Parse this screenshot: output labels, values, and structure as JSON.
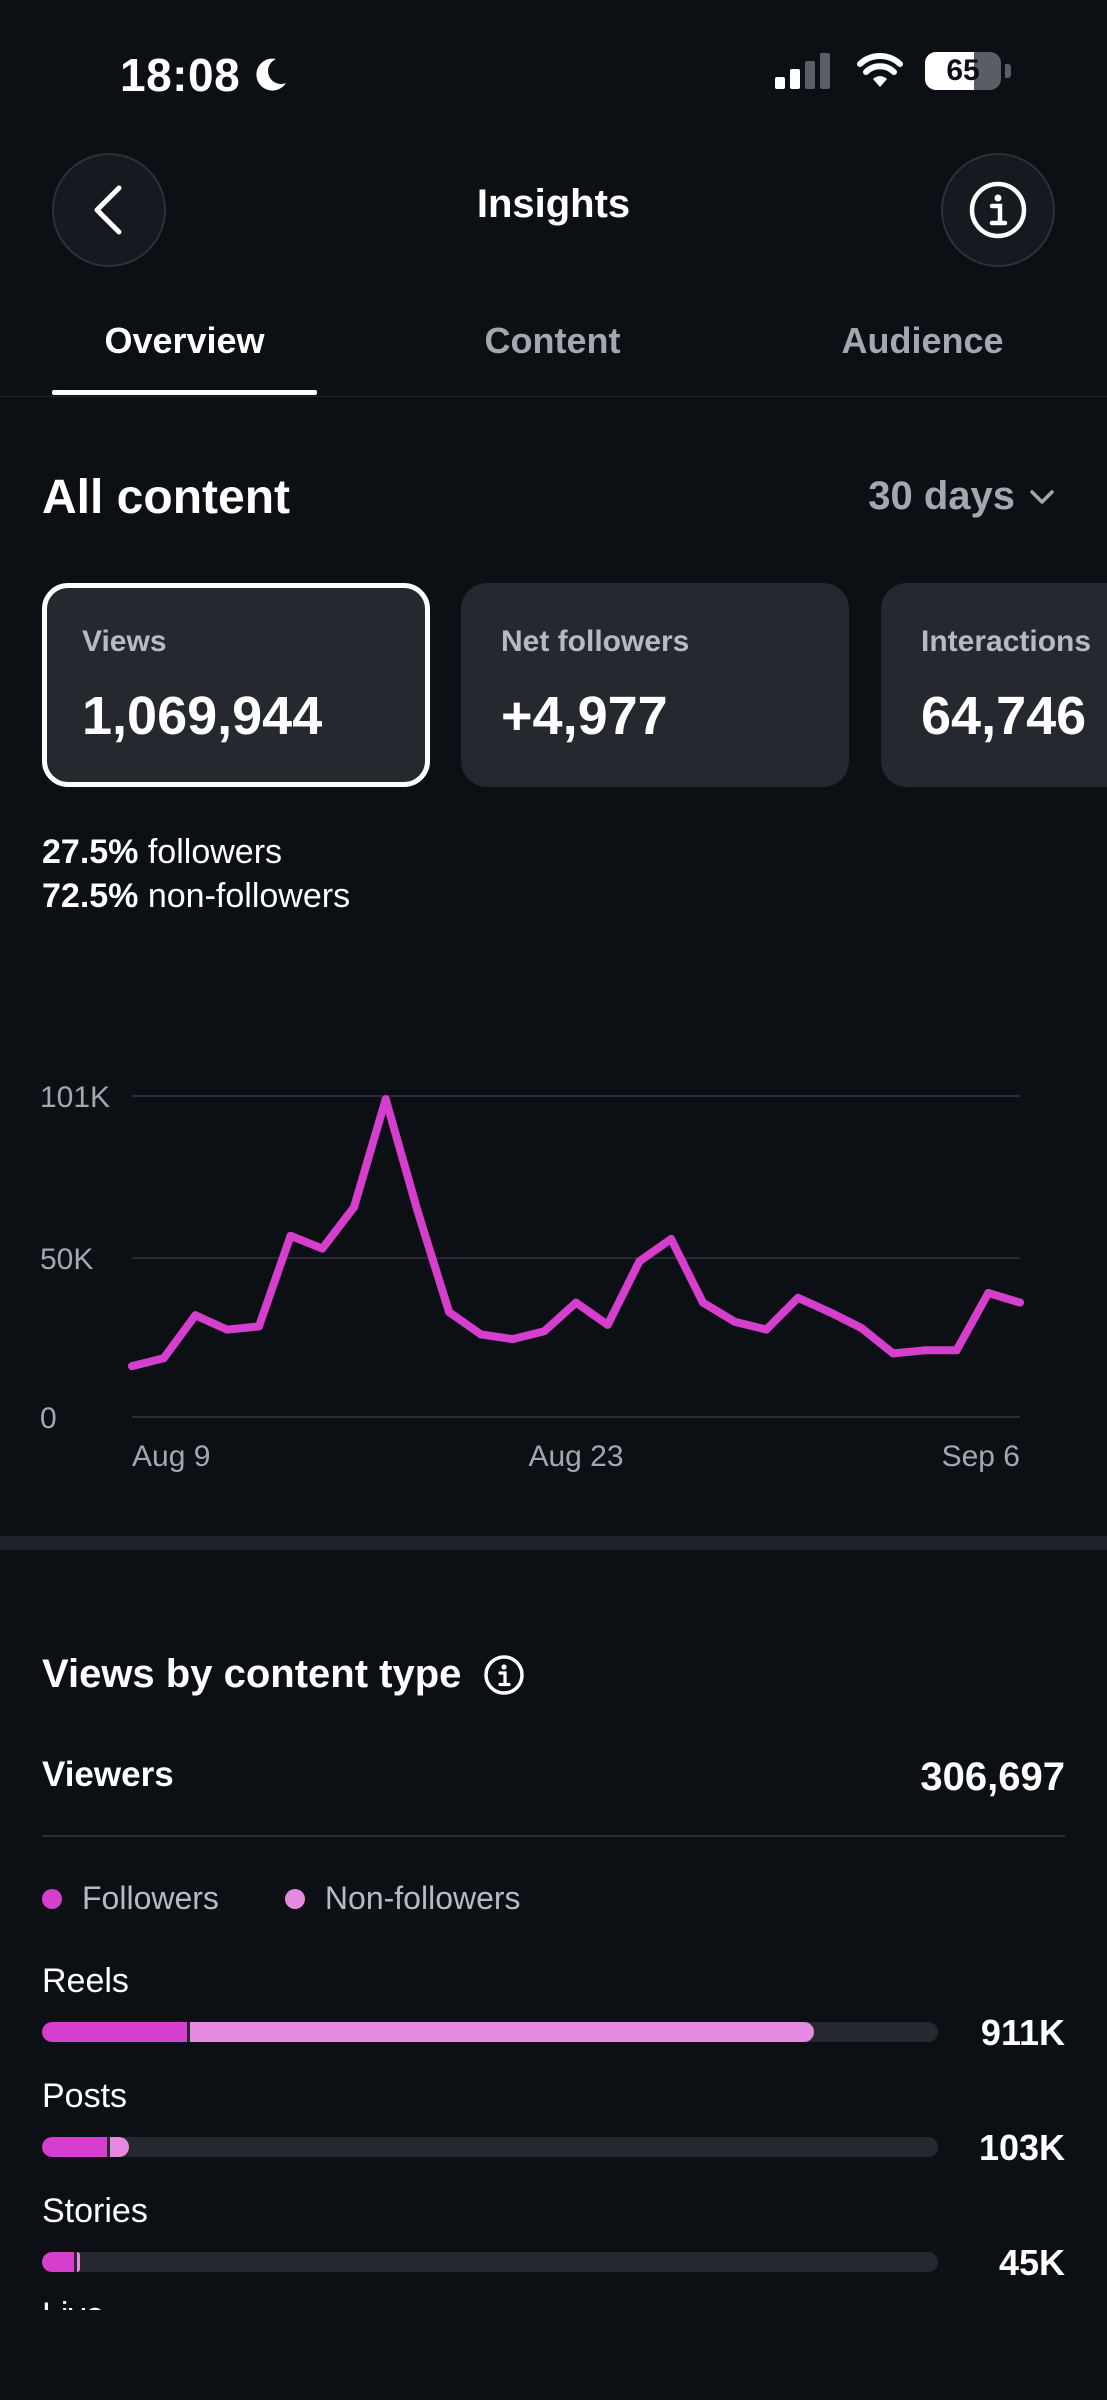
{
  "status": {
    "time": "18:08",
    "battery": "65"
  },
  "header": {
    "title": "Insights"
  },
  "tabs": [
    {
      "label": "Overview"
    },
    {
      "label": "Content"
    },
    {
      "label": "Audience"
    }
  ],
  "all_content": {
    "title": "All content",
    "range": "30 days",
    "cards": [
      {
        "label": "Views",
        "value": "1,069,944"
      },
      {
        "label": "Net followers",
        "value": "+4,977"
      },
      {
        "label": "Interactions",
        "value": "64,746"
      }
    ],
    "breakdown": [
      {
        "pct": "27.5%",
        "label": "followers"
      },
      {
        "pct": "72.5%",
        "label": "non-followers"
      }
    ]
  },
  "chart_data": {
    "type": "line",
    "title": "",
    "xlabel": "",
    "ylabel": "",
    "ylim": [
      0,
      101000
    ],
    "y_ticks": [
      "101K",
      "50K",
      "0"
    ],
    "x_tick_labels": [
      "Aug 9",
      "Aug 23",
      "Sep 6"
    ],
    "x": [
      "Aug 9",
      "Aug 10",
      "Aug 11",
      "Aug 12",
      "Aug 13",
      "Aug 14",
      "Aug 15",
      "Aug 16",
      "Aug 17",
      "Aug 18",
      "Aug 19",
      "Aug 20",
      "Aug 21",
      "Aug 22",
      "Aug 23",
      "Aug 24",
      "Aug 25",
      "Aug 26",
      "Aug 27",
      "Aug 28",
      "Aug 29",
      "Aug 30",
      "Aug 31",
      "Sep 1",
      "Sep 2",
      "Sep 3",
      "Sep 4",
      "Sep 5",
      "Sep 6"
    ],
    "series": [
      {
        "values": [
          16000,
          18500,
          32000,
          27500,
          28500,
          57000,
          53000,
          66000,
          100000,
          65000,
          33000,
          26000,
          24500,
          27000,
          36000,
          29000,
          49000,
          56000,
          36000,
          30000,
          27500,
          37500,
          33000,
          28000,
          20000,
          21000,
          21000,
          39000,
          36000
        ],
        "color": "#d63fce"
      }
    ],
    "grid": true
  },
  "views_by_type": {
    "title": "Views by content type",
    "viewers_label": "Viewers",
    "viewers_value": "306,697",
    "legend": [
      {
        "label": "Followers",
        "color": "#d63fce"
      },
      {
        "label": "Non-followers",
        "color": "#e58ae0"
      }
    ],
    "rows": [
      {
        "label": "Reels",
        "value": "911K",
        "followers_frac": 0.162,
        "nonfollowers_frac": 0.7
      },
      {
        "label": "Posts",
        "value": "103K",
        "followers_frac": 0.072,
        "nonfollowers_frac": 0.025
      },
      {
        "label": "Stories",
        "value": "45K",
        "followers_frac": 0.036,
        "nonfollowers_frac": 0.006
      }
    ],
    "next_row_label": "Live videos"
  },
  "colors": {
    "background": "#0c0f14",
    "card": "#25282e",
    "accent": "#d63fce",
    "accent_light": "#e58ae0",
    "muted_text": "#a3a7b0"
  }
}
